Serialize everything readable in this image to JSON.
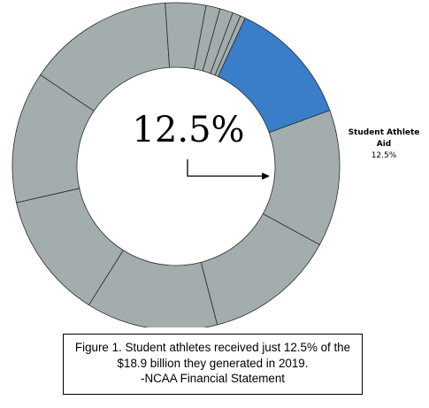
{
  "chart_data": {
    "type": "pie",
    "donut": true,
    "values": [
      12.5,
      13.5,
      13.0,
      13.0,
      12.5,
      13.0,
      14.5,
      4.0,
      1.4,
      1.3,
      0.8,
      0.5
    ],
    "highlight_index": 0,
    "highlight_color": "#3a7dc9",
    "other_color": "#a3adad",
    "slice_label": {
      "name": "Student Athlete Aid",
      "value": "12.5%"
    },
    "center_text": "12.5%"
  },
  "caption": {
    "line1": "Figure 1. Student athletes received just 12.5% of the",
    "line2": "$18.9 billion they generated in 2019.",
    "line3": "-NCAA Financial Statement"
  }
}
